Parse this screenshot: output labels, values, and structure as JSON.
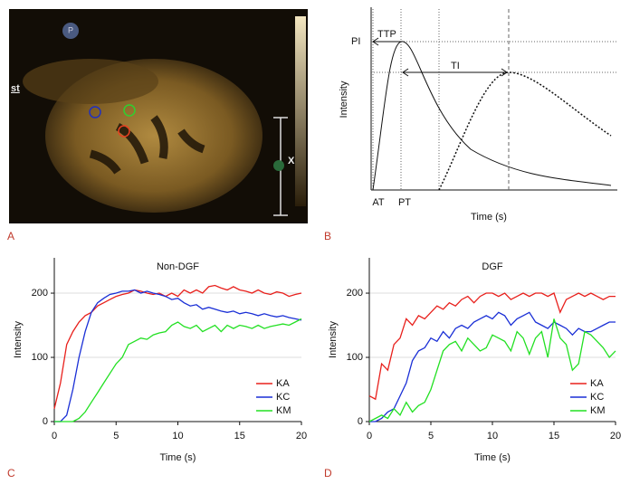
{
  "panel_labels": [
    "A",
    "B",
    "C",
    "D"
  ],
  "image": {
    "markers": [
      "P",
      "st",
      "X"
    ]
  },
  "schematic": {
    "y_label": "Intensity",
    "x_label": "Time (s)",
    "peak_label": "PI",
    "ttp_label": "TTP",
    "ti_label": "TI",
    "at_label": "AT",
    "pt_label": "PT"
  },
  "chart_data": [
    {
      "type": "line",
      "title": "Non-DGF",
      "x_label": "Time (s)",
      "y_label": "Intensity",
      "x": [
        0,
        0.5,
        1,
        1.5,
        2,
        2.5,
        3,
        3.5,
        4,
        4.5,
        5,
        5.5,
        6,
        6.5,
        7,
        7.5,
        8,
        8.5,
        9,
        9.5,
        10,
        10.5,
        11,
        11.5,
        12,
        12.5,
        13,
        13.5,
        14,
        14.5,
        15,
        15.5,
        16,
        16.5,
        17,
        17.5,
        18,
        18.5,
        19,
        19.5,
        20
      ],
      "series": [
        {
          "name": "KA",
          "color": "#e8201c",
          "values": [
            20,
            60,
            120,
            140,
            155,
            165,
            170,
            180,
            185,
            190,
            195,
            198,
            200,
            205,
            203,
            200,
            198,
            200,
            195,
            200,
            195,
            205,
            200,
            205,
            200,
            210,
            212,
            208,
            205,
            210,
            205,
            203,
            200,
            205,
            200,
            198,
            202,
            200,
            195,
            198,
            200
          ]
        },
        {
          "name": "KC",
          "color": "#1a2fd6",
          "values": [
            0,
            0,
            10,
            50,
            100,
            140,
            170,
            185,
            192,
            198,
            200,
            203,
            203,
            205,
            200,
            203,
            200,
            198,
            195,
            190,
            192,
            185,
            180,
            182,
            175,
            178,
            175,
            172,
            170,
            172,
            168,
            170,
            168,
            165,
            168,
            165,
            163,
            165,
            162,
            160,
            158
          ]
        },
        {
          "name": "KM",
          "color": "#22e022",
          "values": [
            0,
            0,
            0,
            0,
            5,
            15,
            30,
            45,
            60,
            75,
            90,
            100,
            120,
            125,
            130,
            128,
            135,
            138,
            140,
            150,
            155,
            148,
            145,
            150,
            140,
            145,
            150,
            140,
            150,
            145,
            150,
            148,
            145,
            150,
            145,
            148,
            150,
            152,
            150,
            155,
            160
          ]
        }
      ],
      "xlim": [
        0,
        20
      ],
      "ylim": [
        0,
        255
      ],
      "xticks": [
        0,
        5,
        10,
        15,
        20
      ],
      "yticks": [
        0,
        100,
        200
      ],
      "grid": true,
      "legend": "lower-right"
    },
    {
      "type": "line",
      "title": "DGF",
      "x_label": "Time (s)",
      "y_label": "Intensity",
      "x": [
        0,
        0.5,
        1,
        1.5,
        2,
        2.5,
        3,
        3.5,
        4,
        4.5,
        5,
        5.5,
        6,
        6.5,
        7,
        7.5,
        8,
        8.5,
        9,
        9.5,
        10,
        10.5,
        11,
        11.5,
        12,
        12.5,
        13,
        13.5,
        14,
        14.5,
        15,
        15.5,
        16,
        16.5,
        17,
        17.5,
        18,
        18.5,
        19,
        19.5,
        20
      ],
      "series": [
        {
          "name": "KA",
          "color": "#e8201c",
          "values": [
            40,
            35,
            90,
            80,
            120,
            130,
            160,
            150,
            165,
            160,
            170,
            180,
            175,
            185,
            180,
            190,
            195,
            185,
            195,
            200,
            200,
            195,
            200,
            190,
            195,
            200,
            195,
            200,
            200,
            195,
            200,
            170,
            190,
            195,
            200,
            195,
            200,
            195,
            190,
            195,
            195
          ]
        },
        {
          "name": "KC",
          "color": "#1a2fd6",
          "values": [
            0,
            0,
            5,
            15,
            20,
            40,
            60,
            95,
            110,
            115,
            130,
            125,
            140,
            130,
            145,
            150,
            145,
            155,
            160,
            165,
            160,
            170,
            165,
            150,
            160,
            165,
            170,
            155,
            150,
            145,
            155,
            150,
            145,
            135,
            145,
            140,
            140,
            145,
            150,
            155,
            155
          ]
        },
        {
          "name": "KM",
          "color": "#22e022",
          "values": [
            0,
            5,
            10,
            5,
            20,
            10,
            30,
            15,
            25,
            30,
            50,
            80,
            110,
            120,
            125,
            110,
            130,
            120,
            110,
            115,
            135,
            130,
            125,
            110,
            140,
            130,
            105,
            130,
            140,
            100,
            160,
            130,
            120,
            80,
            90,
            140,
            135,
            125,
            115,
            100,
            110
          ]
        }
      ],
      "xlim": [
        0,
        20
      ],
      "ylim": [
        0,
        255
      ],
      "xticks": [
        0,
        5,
        10,
        15,
        20
      ],
      "yticks": [
        0,
        100,
        200
      ],
      "grid": true,
      "legend": "lower-right"
    }
  ]
}
